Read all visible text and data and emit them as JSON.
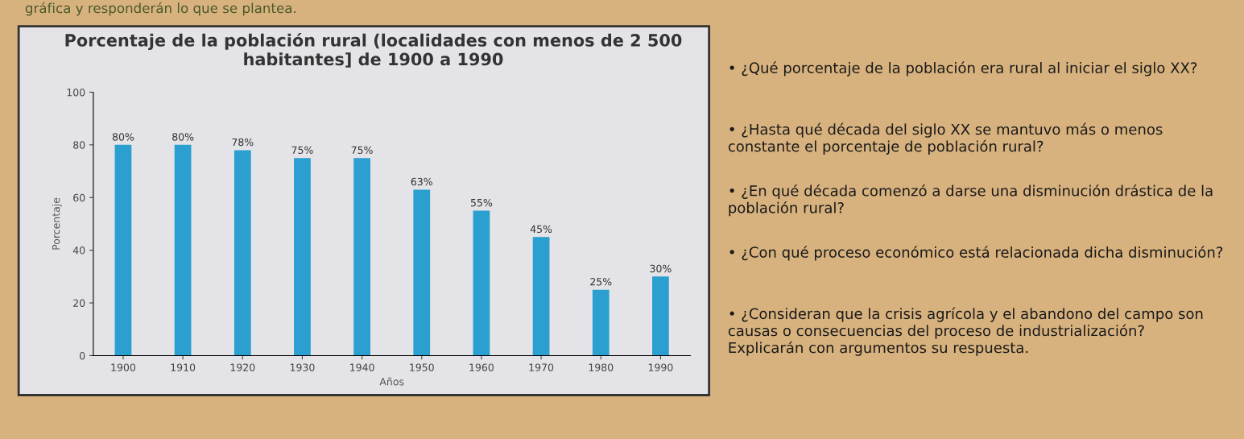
{
  "chart_data": {
    "type": "bar",
    "title": "Porcentaje de la población rural (localidades con menos de 2 500 habitantes] de 1900 a 1990",
    "xlabel": "Años",
    "ylabel": "Porcentaje",
    "categories": [
      "1900",
      "1910",
      "1920",
      "1930",
      "1940",
      "1950",
      "1960",
      "1970",
      "1980",
      "1990"
    ],
    "values": [
      80,
      80,
      78,
      75,
      75,
      63,
      55,
      45,
      25,
      30
    ],
    "value_labels": [
      "80%",
      "80%",
      "78%",
      "75%",
      "75%",
      "63%",
      "55%",
      "45%",
      "25%",
      "30%"
    ],
    "color": "#2a9fd0",
    "ylim": [
      0,
      100
    ],
    "yticks": [
      0,
      20,
      40,
      60,
      80,
      100
    ],
    "grid": false,
    "annotations": [
      "gráfica y responderán lo que se plantea.",
      "• ¿Qué porcentaje de la población era rural al iniciar el siglo XX?",
      "• ¿Hasta qué década del siglo XX se mantuvo más o menos constante el porcentaje de población rural?",
      "• ¿En qué década comenzó a darse una disminución drástica de la población rural?",
      "• ¿Con qué proceso económico está relacionada dicha disminución?",
      "• ¿Consideran que la crisis agrícola y el abandono del campo son causas o consecuencias del proceso de industrialización? Explicarán con argumentos su respuesta."
    ]
  }
}
